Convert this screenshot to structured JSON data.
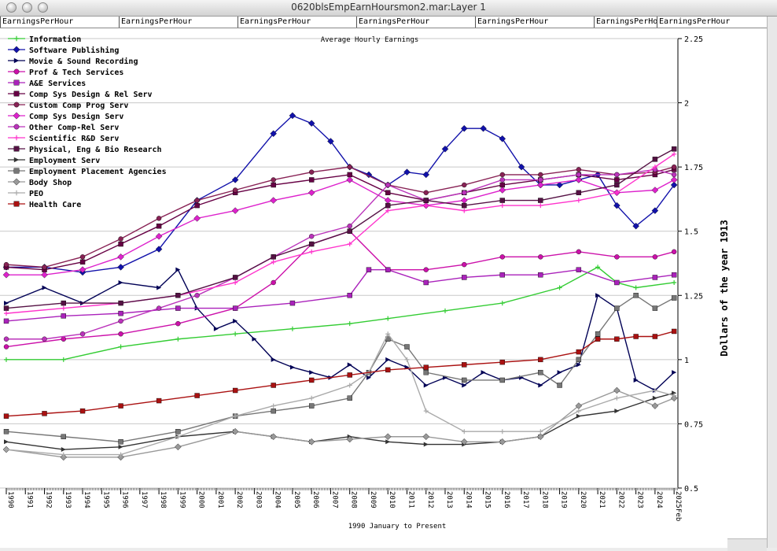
{
  "window": {
    "title": "0620blsEmpEarnHoursmon2.mar:Layer 1"
  },
  "tabs": [
    "EarningsPerHour",
    "EarningsPerHour",
    "EarningsPerHour",
    "EarningsPerHour",
    "EarningsPerHour",
    "EarningsPerHour",
    "EarningsPerHour"
  ],
  "chart_data": {
    "type": "line",
    "title": "Average Hourly Earnings",
    "xlabel": "1990 January to Present",
    "ylabel": "Dollars of the year 1913",
    "xlim": [
      1990,
      2025.2
    ],
    "ylim": [
      0.5,
      2.25
    ],
    "yticks": [
      "0.5",
      "0.75",
      "1",
      "1.25",
      "1.5",
      "1.75",
      "2",
      "2.25"
    ],
    "xticks": [
      "1990",
      "1991",
      "1992",
      "1993",
      "1994",
      "1995",
      "1996",
      "1997",
      "1998",
      "1999",
      "2000",
      "2001",
      "2002",
      "2003",
      "2004",
      "2005",
      "2006",
      "2007",
      "2008",
      "2009",
      "2010",
      "2011",
      "2012",
      "2013",
      "2014",
      "2015",
      "2016",
      "2017",
      "2018",
      "2019",
      "2020",
      "2021",
      "2022",
      "2023",
      "2024",
      "2025"
    ],
    "end_label": "Feb",
    "grid": true,
    "legend_position": "top-left",
    "series": [
      {
        "name": "Information",
        "color": "#33cc33",
        "marker": "plus",
        "x": [
          1990,
          1993,
          1996,
          1999,
          2002,
          2005,
          2008,
          2010,
          2013,
          2016,
          2019,
          2021,
          2022,
          2023,
          2025
        ],
        "y": [
          1.0,
          1.0,
          1.05,
          1.08,
          1.1,
          1.12,
          1.14,
          1.16,
          1.19,
          1.22,
          1.28,
          1.36,
          1.3,
          1.28,
          1.3
        ]
      },
      {
        "name": "Software Publishing",
        "color": "#1111aa",
        "marker": "diamond",
        "x": [
          1990,
          1992,
          1994,
          1996,
          1998,
          2000,
          2002,
          2004,
          2005,
          2006,
          2007,
          2008,
          2009,
          2010,
          2011,
          2012,
          2013,
          2014,
          2015,
          2016,
          2017,
          2018,
          2019,
          2020,
          2021,
          2022,
          2023,
          2024,
          2025
        ],
        "y": [
          1.36,
          1.36,
          1.34,
          1.36,
          1.43,
          1.62,
          1.7,
          1.88,
          1.95,
          1.92,
          1.85,
          1.75,
          1.72,
          1.68,
          1.73,
          1.72,
          1.82,
          1.9,
          1.9,
          1.86,
          1.75,
          1.68,
          1.68,
          1.7,
          1.72,
          1.6,
          1.52,
          1.58,
          1.68
        ]
      },
      {
        "name": "Movie & Sound Recording",
        "color": "#000055",
        "marker": "arrow",
        "x": [
          1990,
          1992,
          1994,
          1996,
          1998,
          1999,
          2000,
          2001,
          2002,
          2003,
          2004,
          2005,
          2006,
          2007,
          2008,
          2009,
          2010,
          2011,
          2012,
          2013,
          2014,
          2015,
          2016,
          2017,
          2018,
          2019,
          2020,
          2021,
          2022,
          2023,
          2024,
          2025
        ],
        "y": [
          1.22,
          1.28,
          1.22,
          1.3,
          1.28,
          1.35,
          1.2,
          1.12,
          1.15,
          1.08,
          1.0,
          0.97,
          0.95,
          0.93,
          0.98,
          0.93,
          1.0,
          0.97,
          0.9,
          0.93,
          0.9,
          0.95,
          0.92,
          0.93,
          0.9,
          0.95,
          0.98,
          1.25,
          1.2,
          0.92,
          0.88,
          0.95
        ]
      },
      {
        "name": "Prof & Tech Services",
        "color": "#cc11aa",
        "marker": "circle",
        "x": [
          1990,
          1993,
          1996,
          1999,
          2002,
          2004,
          2006,
          2008,
          2010,
          2012,
          2014,
          2016,
          2018,
          2020,
          2022,
          2024,
          2025
        ],
        "y": [
          1.05,
          1.08,
          1.1,
          1.14,
          1.2,
          1.3,
          1.45,
          1.5,
          1.35,
          1.35,
          1.37,
          1.4,
          1.4,
          1.42,
          1.4,
          1.4,
          1.42
        ]
      },
      {
        "name": "A&E Services",
        "color": "#aa22bb",
        "marker": "square",
        "x": [
          1990,
          1993,
          1996,
          1999,
          2002,
          2005,
          2008,
          2009,
          2010,
          2012,
          2014,
          2016,
          2018,
          2020,
          2022,
          2024,
          2025
        ],
        "y": [
          1.15,
          1.17,
          1.18,
          1.2,
          1.2,
          1.22,
          1.25,
          1.35,
          1.35,
          1.3,
          1.32,
          1.33,
          1.33,
          1.35,
          1.3,
          1.32,
          1.33
        ]
      },
      {
        "name": "Comp Sys Design & Rel Serv",
        "color": "#660044",
        "marker": "square",
        "x": [
          1990,
          1992,
          1994,
          1996,
          1998,
          2000,
          2002,
          2004,
          2006,
          2008,
          2010,
          2012,
          2014,
          2016,
          2018,
          2020,
          2022,
          2024,
          2025
        ],
        "y": [
          1.36,
          1.35,
          1.38,
          1.45,
          1.52,
          1.6,
          1.65,
          1.68,
          1.7,
          1.72,
          1.65,
          1.62,
          1.65,
          1.68,
          1.7,
          1.72,
          1.7,
          1.72,
          1.74
        ]
      },
      {
        "name": "Custom Comp Prog Serv",
        "color": "#882255",
        "marker": "circle",
        "x": [
          1990,
          1992,
          1994,
          1996,
          1998,
          2000,
          2002,
          2004,
          2006,
          2008,
          2010,
          2012,
          2014,
          2016,
          2018,
          2020,
          2022,
          2024,
          2025
        ],
        "y": [
          1.37,
          1.36,
          1.4,
          1.47,
          1.55,
          1.62,
          1.66,
          1.7,
          1.73,
          1.75,
          1.68,
          1.65,
          1.68,
          1.72,
          1.72,
          1.74,
          1.72,
          1.73,
          1.75
        ]
      },
      {
        "name": "Comp Sys Design Serv",
        "color": "#dd22cc",
        "marker": "diamond",
        "x": [
          1990,
          1992,
          1994,
          1996,
          1998,
          2000,
          2002,
          2004,
          2006,
          2008,
          2010,
          2012,
          2014,
          2016,
          2018,
          2020,
          2022,
          2024,
          2025
        ],
        "y": [
          1.33,
          1.33,
          1.35,
          1.4,
          1.48,
          1.55,
          1.58,
          1.62,
          1.65,
          1.7,
          1.62,
          1.6,
          1.62,
          1.66,
          1.68,
          1.7,
          1.65,
          1.66,
          1.7
        ]
      },
      {
        "name": "Other Comp-Rel Serv",
        "color": "#bb33bb",
        "marker": "circle",
        "x": [
          1990,
          1992,
          1994,
          1996,
          1998,
          2000,
          2002,
          2004,
          2006,
          2008,
          2010,
          2012,
          2014,
          2016,
          2018,
          2020,
          2022,
          2024,
          2025
        ],
        "y": [
          1.08,
          1.08,
          1.1,
          1.15,
          1.2,
          1.25,
          1.32,
          1.4,
          1.48,
          1.52,
          1.68,
          1.62,
          1.65,
          1.7,
          1.7,
          1.72,
          1.72,
          1.74,
          1.72
        ]
      },
      {
        "name": "Scientific R&D Serv",
        "color": "#ff33cc",
        "marker": "plus",
        "x": [
          1990,
          1993,
          1996,
          1999,
          2002,
          2004,
          2006,
          2008,
          2010,
          2012,
          2014,
          2016,
          2018,
          2020,
          2022,
          2024,
          2025
        ],
        "y": [
          1.18,
          1.2,
          1.22,
          1.25,
          1.3,
          1.38,
          1.42,
          1.45,
          1.58,
          1.6,
          1.58,
          1.6,
          1.6,
          1.62,
          1.65,
          1.75,
          1.8
        ]
      },
      {
        "name": "Physical, Eng & Bio Research",
        "color": "#551144",
        "marker": "square",
        "x": [
          1990,
          1993,
          1996,
          1999,
          2002,
          2004,
          2006,
          2008,
          2010,
          2012,
          2014,
          2016,
          2018,
          2020,
          2022,
          2024,
          2025
        ],
        "y": [
          1.2,
          1.22,
          1.22,
          1.25,
          1.32,
          1.4,
          1.45,
          1.5,
          1.6,
          1.62,
          1.6,
          1.62,
          1.62,
          1.65,
          1.68,
          1.78,
          1.82
        ]
      },
      {
        "name": "Employment Serv",
        "color": "#333333",
        "marker": "arrow",
        "x": [
          1990,
          1993,
          1996,
          1999,
          2002,
          2004,
          2006,
          2008,
          2010,
          2012,
          2014,
          2016,
          2018,
          2020,
          2022,
          2024,
          2025
        ],
        "y": [
          0.68,
          0.65,
          0.66,
          0.7,
          0.72,
          0.7,
          0.68,
          0.7,
          0.68,
          0.67,
          0.67,
          0.68,
          0.7,
          0.78,
          0.8,
          0.85,
          0.87
        ]
      },
      {
        "name": "Employment Placement Agencies",
        "color": "#777777",
        "marker": "square",
        "x": [
          1990,
          1993,
          1996,
          1999,
          2002,
          2004,
          2006,
          2008,
          2009,
          2010,
          2011,
          2012,
          2014,
          2016,
          2018,
          2019,
          2020,
          2021,
          2022,
          2023,
          2024,
          2025
        ],
        "y": [
          0.72,
          0.7,
          0.68,
          0.72,
          0.78,
          0.8,
          0.82,
          0.85,
          0.95,
          1.08,
          1.05,
          0.95,
          0.92,
          0.92,
          0.95,
          0.9,
          1.0,
          1.1,
          1.2,
          1.25,
          1.2,
          1.24
        ]
      },
      {
        "name": "Body Shop",
        "color": "#999999",
        "marker": "diamond",
        "x": [
          1990,
          1993,
          1996,
          1999,
          2002,
          2004,
          2006,
          2008,
          2010,
          2012,
          2014,
          2016,
          2018,
          2020,
          2022,
          2024,
          2025
        ],
        "y": [
          0.65,
          0.62,
          0.62,
          0.66,
          0.72,
          0.7,
          0.68,
          0.69,
          0.7,
          0.7,
          0.68,
          0.68,
          0.7,
          0.82,
          0.88,
          0.82,
          0.85
        ]
      },
      {
        "name": "PEO",
        "color": "#aaaaaa",
        "marker": "plus",
        "x": [
          1990,
          1993,
          1996,
          1999,
          2002,
          2004,
          2006,
          2008,
          2009,
          2010,
          2011,
          2012,
          2014,
          2016,
          2018,
          2020,
          2022,
          2024,
          2025
        ],
        "y": [
          0.65,
          0.63,
          0.63,
          0.7,
          0.78,
          0.82,
          0.85,
          0.9,
          0.95,
          1.1,
          1.0,
          0.8,
          0.72,
          0.72,
          0.72,
          0.8,
          0.85,
          0.88,
          0.86
        ]
      },
      {
        "name": "Health Care",
        "color": "#aa1111",
        "marker": "square",
        "x": [
          1990,
          1992,
          1994,
          1996,
          1998,
          2000,
          2002,
          2004,
          2006,
          2008,
          2010,
          2012,
          2014,
          2016,
          2018,
          2020,
          2021,
          2022,
          2023,
          2024,
          2025
        ],
        "y": [
          0.78,
          0.79,
          0.8,
          0.82,
          0.84,
          0.86,
          0.88,
          0.9,
          0.92,
          0.94,
          0.96,
          0.97,
          0.98,
          0.99,
          1.0,
          1.03,
          1.08,
          1.08,
          1.09,
          1.09,
          1.11
        ]
      }
    ]
  }
}
